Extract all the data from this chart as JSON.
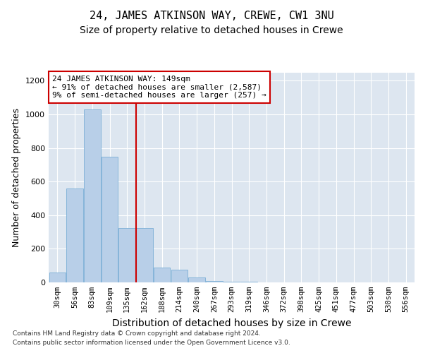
{
  "title": "24, JAMES ATKINSON WAY, CREWE, CW1 3NU",
  "subtitle": "Size of property relative to detached houses in Crewe",
  "xlabel": "Distribution of detached houses by size in Crewe",
  "ylabel": "Number of detached properties",
  "footer_line1": "Contains HM Land Registry data © Crown copyright and database right 2024.",
  "footer_line2": "Contains public sector information licensed under the Open Government Licence v3.0.",
  "annotation_line1": "24 JAMES ATKINSON WAY: 149sqm",
  "annotation_line2": "← 91% of detached houses are smaller (2,587)",
  "annotation_line3": "9% of semi-detached houses are larger (257) →",
  "bar_categories": [
    "30sqm",
    "56sqm",
    "83sqm",
    "109sqm",
    "135sqm",
    "162sqm",
    "188sqm",
    "214sqm",
    "240sqm",
    "267sqm",
    "293sqm",
    "319sqm",
    "346sqm",
    "372sqm",
    "398sqm",
    "425sqm",
    "451sqm",
    "477sqm",
    "503sqm",
    "530sqm",
    "556sqm"
  ],
  "bar_values": [
    57,
    558,
    1030,
    747,
    325,
    325,
    88,
    75,
    30,
    10,
    5,
    5,
    0,
    0,
    0,
    0,
    0,
    0,
    0,
    0,
    0
  ],
  "bar_color": "#b8cfe8",
  "bar_edge_color": "#7aaed6",
  "vline_x_index": 4.5,
  "vline_color": "#cc0000",
  "background_color": "#dde6f0",
  "ylim": [
    0,
    1250
  ],
  "yticks": [
    0,
    200,
    400,
    600,
    800,
    1000,
    1200
  ],
  "title_fontsize": 11,
  "subtitle_fontsize": 10,
  "ylabel_fontsize": 9,
  "xlabel_fontsize": 10,
  "tick_fontsize": 7.5,
  "annotation_fontsize": 8,
  "footer_fontsize": 6.5
}
